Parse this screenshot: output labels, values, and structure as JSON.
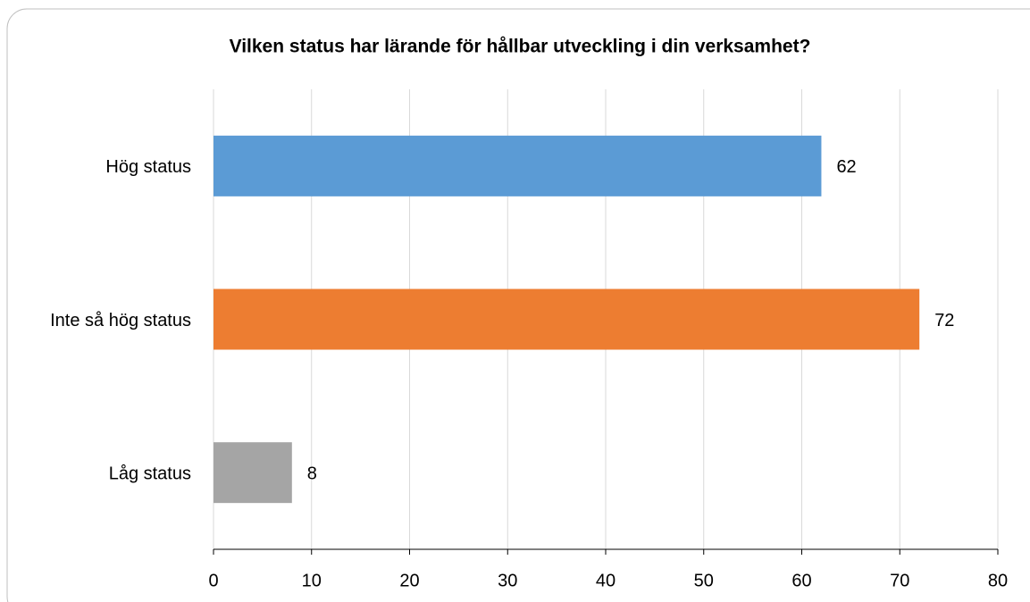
{
  "chart_data": {
    "type": "bar",
    "orientation": "horizontal",
    "title": "Vilken status har lärande för hållbar utveckling i din verksamhet?",
    "categories": [
      "Hög status",
      "Inte så hög status",
      "Låg status"
    ],
    "values": [
      62,
      72,
      8
    ],
    "colors": [
      "#5b9bd5",
      "#ed7d31",
      "#a5a5a5"
    ],
    "xlim": [
      0,
      80
    ],
    "xticks": [
      0,
      10,
      20,
      30,
      40,
      50,
      60,
      70,
      80
    ],
    "grid": true
  }
}
